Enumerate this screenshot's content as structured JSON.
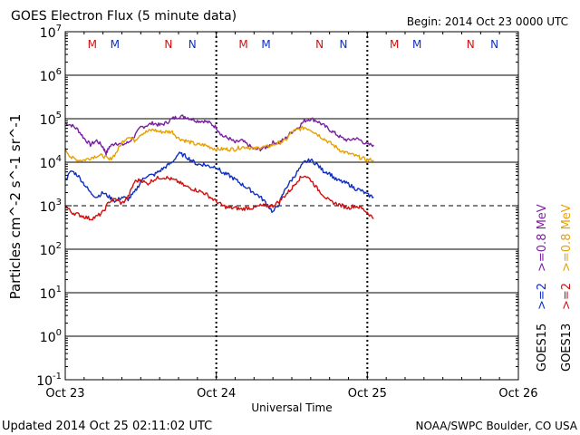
{
  "chart_data": {
    "type": "line",
    "title": "GOES Electron Flux (5 minute data)",
    "begin_label": "Begin: 2014 Oct 23 0000 UTC",
    "xlabel": "Universal Time",
    "ylabel": "Particles cm^-2 s^-1 sr^-1",
    "x_unit": "hours since 2014 Oct 23 0000 UTC",
    "xlim": [
      0,
      72
    ],
    "ylim_log10": [
      -1,
      7
    ],
    "y_ticks": [
      {
        "exp": "-1",
        "value": -1
      },
      {
        "exp": "0",
        "value": 0
      },
      {
        "exp": "1",
        "value": 1
      },
      {
        "exp": "2",
        "value": 2
      },
      {
        "exp": "3",
        "value": 3
      },
      {
        "exp": "4",
        "value": 4
      },
      {
        "exp": "5",
        "value": 5
      },
      {
        "exp": "6",
        "value": 6
      },
      {
        "exp": "7",
        "value": 7
      }
    ],
    "y_tick_base": "10",
    "x_ticks": [
      {
        "label": "Oct 23",
        "value": 0
      },
      {
        "label": "Oct 24",
        "value": 24
      },
      {
        "label": "Oct 25",
        "value": 48
      },
      {
        "label": "Oct 26",
        "value": 72
      }
    ],
    "threshold_log10": 3,
    "grid_lines_log10": [
      0,
      1,
      2,
      4,
      5,
      6
    ],
    "day_boundaries": [
      24,
      48
    ],
    "local_noon_markers": [
      {
        "letter": "M",
        "x": 4.3,
        "color": "#d01010"
      },
      {
        "letter": "M",
        "x": 7.9,
        "color": "#1030c0"
      },
      {
        "letter": "N",
        "x": 16.4,
        "color": "#d01010"
      },
      {
        "letter": "N",
        "x": 20.2,
        "color": "#1030c0"
      },
      {
        "letter": "M",
        "x": 28.3,
        "color": "#d01010"
      },
      {
        "letter": "M",
        "x": 31.9,
        "color": "#1030c0"
      },
      {
        "letter": "N",
        "x": 40.4,
        "color": "#d01010"
      },
      {
        "letter": "N",
        "x": 44.2,
        "color": "#1030c0"
      },
      {
        "letter": "M",
        "x": 52.3,
        "color": "#d01010"
      },
      {
        "letter": "M",
        "x": 55.9,
        "color": "#1030c0"
      },
      {
        "letter": "N",
        "x": 64.4,
        "color": "#d01010"
      },
      {
        "letter": "N",
        "x": 68.2,
        "color": "#1030c0"
      }
    ],
    "series": [
      {
        "name": "GOES15 >=0.8 MeV",
        "color": "#7a1fa0",
        "x": [
          0,
          1,
          2,
          3,
          4,
          5,
          6,
          6.5,
          7,
          8,
          9,
          10,
          11,
          12,
          13,
          14,
          15,
          16,
          17,
          18,
          19,
          20,
          21,
          22,
          23,
          24,
          25,
          26,
          27,
          28,
          29,
          30,
          31,
          32,
          33,
          34,
          35,
          36,
          37,
          38,
          39,
          40,
          41,
          42,
          43,
          44,
          45,
          46,
          47,
          48,
          49
        ],
        "y": [
          4.9,
          4.85,
          4.75,
          4.55,
          4.4,
          4.5,
          4.35,
          4.2,
          4.35,
          4.45,
          4.4,
          4.45,
          4.6,
          4.8,
          4.85,
          4.9,
          4.85,
          4.9,
          5.0,
          5.05,
          5.05,
          5.0,
          4.95,
          4.95,
          4.9,
          4.8,
          4.6,
          4.55,
          4.45,
          4.5,
          4.4,
          4.3,
          4.3,
          4.35,
          4.45,
          4.45,
          4.55,
          4.7,
          4.8,
          4.95,
          5.0,
          4.95,
          4.85,
          4.75,
          4.65,
          4.55,
          4.5,
          4.55,
          4.5,
          4.4,
          4.4
        ]
      },
      {
        "name": "GOES13 >=0.8 MeV",
        "color": "#e8a000",
        "x": [
          0,
          1,
          2,
          3,
          4,
          5,
          6,
          7,
          8,
          9,
          10,
          11,
          12,
          13,
          14,
          15,
          16,
          17,
          18,
          19,
          20,
          21,
          22,
          23,
          24,
          25,
          26,
          27,
          28,
          29,
          30,
          31,
          32,
          33,
          34,
          35,
          36,
          37,
          38,
          39,
          40,
          41,
          42,
          43,
          44,
          45,
          46,
          47,
          48,
          49
        ],
        "y": [
          4.3,
          4.1,
          4.05,
          4.05,
          4.1,
          4.15,
          4.15,
          4.05,
          4.2,
          4.45,
          4.6,
          4.5,
          4.65,
          4.7,
          4.75,
          4.7,
          4.7,
          4.7,
          4.55,
          4.5,
          4.45,
          4.4,
          4.4,
          4.35,
          4.3,
          4.3,
          4.3,
          4.3,
          4.35,
          4.35,
          4.3,
          4.35,
          4.35,
          4.4,
          4.45,
          4.5,
          4.7,
          4.75,
          4.8,
          4.75,
          4.65,
          4.55,
          4.45,
          4.35,
          4.25,
          4.2,
          4.15,
          4.1,
          4.05,
          4.05
        ]
      },
      {
        "name": "GOES15 >=2 MeV",
        "color": "#1030c0",
        "x": [
          0,
          1,
          2,
          3,
          4,
          5,
          6,
          7,
          8,
          9,
          10,
          11,
          12,
          13,
          14,
          15,
          16,
          17,
          18,
          19,
          20,
          21,
          22,
          23,
          24,
          25,
          26,
          27,
          28,
          29,
          30,
          31,
          32,
          33,
          34,
          35,
          36,
          37,
          38,
          39,
          40,
          41,
          42,
          43,
          44,
          45,
          46,
          47,
          48,
          49
        ],
        "y": [
          3.6,
          3.8,
          3.7,
          3.5,
          3.3,
          3.2,
          3.3,
          3.2,
          3.1,
          3.2,
          3.15,
          3.3,
          3.55,
          3.7,
          3.7,
          3.8,
          3.9,
          4.0,
          4.2,
          4.15,
          4.05,
          3.95,
          3.95,
          3.9,
          3.9,
          3.75,
          3.7,
          3.6,
          3.5,
          3.4,
          3.3,
          3.2,
          3.05,
          2.85,
          3.05,
          3.4,
          3.6,
          3.8,
          4.0,
          4.05,
          3.95,
          3.8,
          3.75,
          3.6,
          3.55,
          3.5,
          3.4,
          3.35,
          3.25,
          3.2
        ]
      },
      {
        "name": "GOES13 >=2 MeV",
        "color": "#d01010",
        "x": [
          0,
          1,
          2,
          3,
          4,
          5,
          6,
          7,
          8,
          9,
          10,
          11,
          12,
          13,
          14,
          15,
          16,
          17,
          18,
          19,
          20,
          21,
          22,
          23,
          24,
          25,
          26,
          27,
          28,
          29,
          30,
          31,
          32,
          33,
          34,
          35,
          36,
          37,
          38,
          39,
          40,
          41,
          42,
          43,
          44,
          45,
          46,
          47,
          48,
          49
        ],
        "y": [
          3.0,
          2.85,
          2.8,
          2.75,
          2.7,
          2.75,
          2.85,
          3.1,
          3.15,
          3.05,
          3.2,
          3.55,
          3.6,
          3.5,
          3.6,
          3.65,
          3.65,
          3.6,
          3.55,
          3.45,
          3.4,
          3.35,
          3.3,
          3.2,
          3.1,
          3.0,
          2.95,
          2.95,
          2.92,
          2.95,
          2.95,
          3.0,
          3.0,
          3.0,
          3.1,
          3.25,
          3.4,
          3.6,
          3.7,
          3.6,
          3.4,
          3.25,
          3.1,
          3.05,
          3.0,
          2.95,
          3.0,
          2.95,
          2.85,
          2.7
        ]
      }
    ],
    "legend": {
      "group_labels": [
        "GOES15",
        "GOES13"
      ],
      "entries": [
        {
          "text": ">=0.8 MeV",
          "color": "#7a1fa0",
          "row": "top"
        },
        {
          "text": ">=0.8 MeV",
          "color": "#e8a000",
          "row": "bottom"
        },
        {
          "text": ">=2",
          "color": "#1030c0",
          "row": "top"
        },
        {
          "text": ">=2",
          "color": "#d01010",
          "row": "bottom"
        }
      ]
    }
  },
  "footer": {
    "updated": "Updated 2014 Oct 25 02:11:02 UTC",
    "credit": "NOAA/SWPC Boulder, CO USA"
  }
}
